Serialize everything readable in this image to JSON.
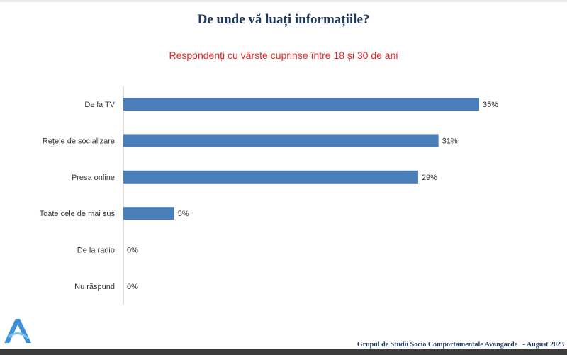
{
  "chart_data": {
    "type": "bar",
    "orientation": "horizontal",
    "title": "De unde vă luați informațiile?",
    "subtitle": "Respondenți cu vârste cuprinse între 18 și 30 de ani",
    "categories": [
      "De la TV",
      "Rețele de socializare",
      "Presa online",
      "Toate cele de mai sus",
      "De la radio",
      "Nu răspund"
    ],
    "values": [
      35,
      31,
      29,
      5,
      0,
      0
    ],
    "value_labels": [
      "35%",
      "31%",
      "29%",
      "5%",
      "0%",
      "0%"
    ],
    "xlim": [
      0,
      35
    ],
    "grid": false,
    "bar_color": "#4a7ebb"
  },
  "footer": {
    "source": "Grupul de Studii Socio Comportamentale Avangarde",
    "separator": "-",
    "date": "August 2023"
  },
  "logo": {
    "letter": "A"
  }
}
